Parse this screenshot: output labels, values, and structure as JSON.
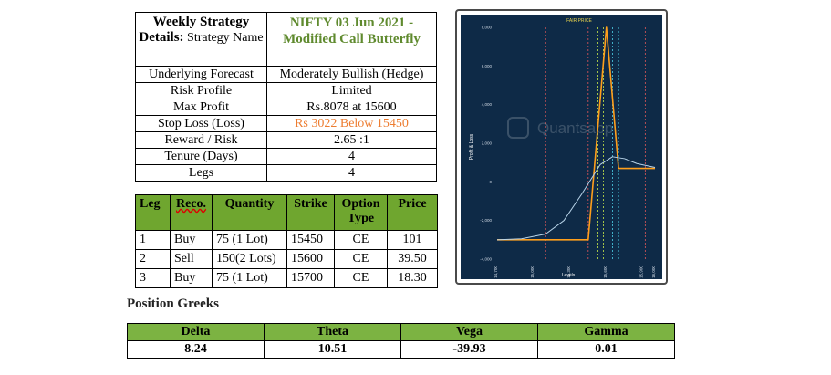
{
  "details": {
    "header_label_bold": "Weekly Strategy Details:",
    "header_label_rest": " Strategy Name",
    "header_value": "NIFTY 03 Jun 2021 - Modified Call Butterfly",
    "rows": [
      {
        "label": "Underlying Forecast",
        "value": "Moderately Bullish (Hedge)"
      },
      {
        "label": "Risk Profile",
        "value": "Limited"
      },
      {
        "label": "Max Profit",
        "value": "Rs.8078 at 15600"
      },
      {
        "label": "Stop Loss (Loss)",
        "value": "Rs 3022 Below 15450"
      },
      {
        "label": "Reward / Risk",
        "value": "2.65 :1"
      },
      {
        "label": "Tenure (Days)",
        "value": "4"
      },
      {
        "label": "Legs",
        "value": "4"
      }
    ]
  },
  "legs": {
    "headers": [
      "Leg",
      "Reco.",
      "Quantity",
      "Strike",
      "Option Type",
      "Price"
    ],
    "rows": [
      {
        "leg": "1",
        "reco": "Buy",
        "qty": "75 (1 Lot)",
        "strike": "15450",
        "type": "CE",
        "price": "101"
      },
      {
        "leg": "2",
        "reco": "Sell",
        "qty": "150(2 Lots)",
        "strike": "15600",
        "type": "CE",
        "price": "39.50"
      },
      {
        "leg": "3",
        "reco": "Buy",
        "qty": "75 (1 Lot)",
        "strike": "15700",
        "type": "CE",
        "price": "18.30"
      }
    ]
  },
  "greeks": {
    "title": "Position Greeks",
    "headers": [
      "Delta",
      "Theta",
      "Vega",
      "Gamma"
    ],
    "values": [
      "8.24",
      "10.51",
      "-39.93",
      "0.01"
    ]
  },
  "chart_data": {
    "type": "line",
    "xlabel": "Levels",
    "ylabel": "Profit & Loss",
    "annotation": "FAIR PRICE",
    "watermark": "Quantsapp",
    "xlim": [
      14700,
      16000
    ],
    "ylim": [
      -4000,
      8000
    ],
    "x_ticks": [
      "14,700",
      "15,000",
      "15,300",
      "15,600",
      "15,900",
      "16,000"
    ],
    "y_ticks": [
      "8,000",
      "6,000",
      "4,000",
      "2,000",
      "0",
      "-2,000",
      "-4,000"
    ],
    "series": [
      {
        "color": "#ff9f1c",
        "x": [
          14700,
          15350,
          15450,
          15600,
          15700,
          16000
        ],
        "y": [
          -3000,
          -3000,
          -3000,
          8000,
          700,
          700
        ]
      },
      {
        "color": "#b7d3e8",
        "x": [
          14700,
          14900,
          15100,
          15250,
          15400,
          15550,
          15650,
          15750,
          15850,
          16000
        ],
        "y": [
          -3000,
          -2950,
          -2700,
          -2000,
          -600,
          900,
          1300,
          1200,
          950,
          750
        ]
      }
    ],
    "vlines": [
      {
        "x": 15100,
        "color": "#e15759"
      },
      {
        "x": 15450,
        "color": "#e15759"
      },
      {
        "x": 15530,
        "color": "#c7e84a"
      },
      {
        "x": 15575,
        "color": "#c7e84a"
      },
      {
        "x": 15650,
        "color": "#4fd1e8"
      },
      {
        "x": 15700,
        "color": "#4fd1e8"
      },
      {
        "x": 15920,
        "color": "#e15759"
      }
    ]
  }
}
